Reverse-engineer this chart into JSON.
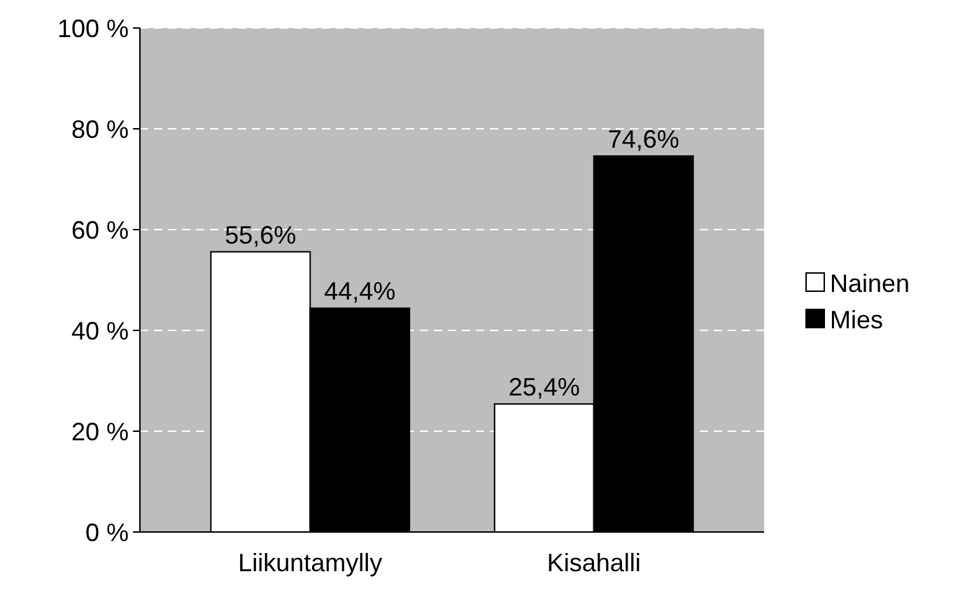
{
  "chart_data": {
    "type": "bar",
    "categories": [
      "Liikuntamylly",
      "Kisahalli"
    ],
    "series": [
      {
        "name": "Nainen",
        "color": "#ffffff",
        "values": [
          55.6,
          25.4
        ],
        "value_labels": [
          "55,6%",
          "25,4%"
        ]
      },
      {
        "name": "Mies",
        "color": "#000000",
        "values": [
          44.4,
          74.6
        ],
        "value_labels": [
          "44,4%",
          "74,6%"
        ]
      }
    ],
    "ylim": [
      0,
      100
    ],
    "yticks": [
      {
        "value": 0,
        "label": "0 %"
      },
      {
        "value": 20,
        "label": "20 %"
      },
      {
        "value": 40,
        "label": "40 %"
      },
      {
        "value": 60,
        "label": "60 %"
      },
      {
        "value": 80,
        "label": "80 %"
      },
      {
        "value": 100,
        "label": "100 %"
      }
    ],
    "grid": true,
    "legend": "right"
  }
}
